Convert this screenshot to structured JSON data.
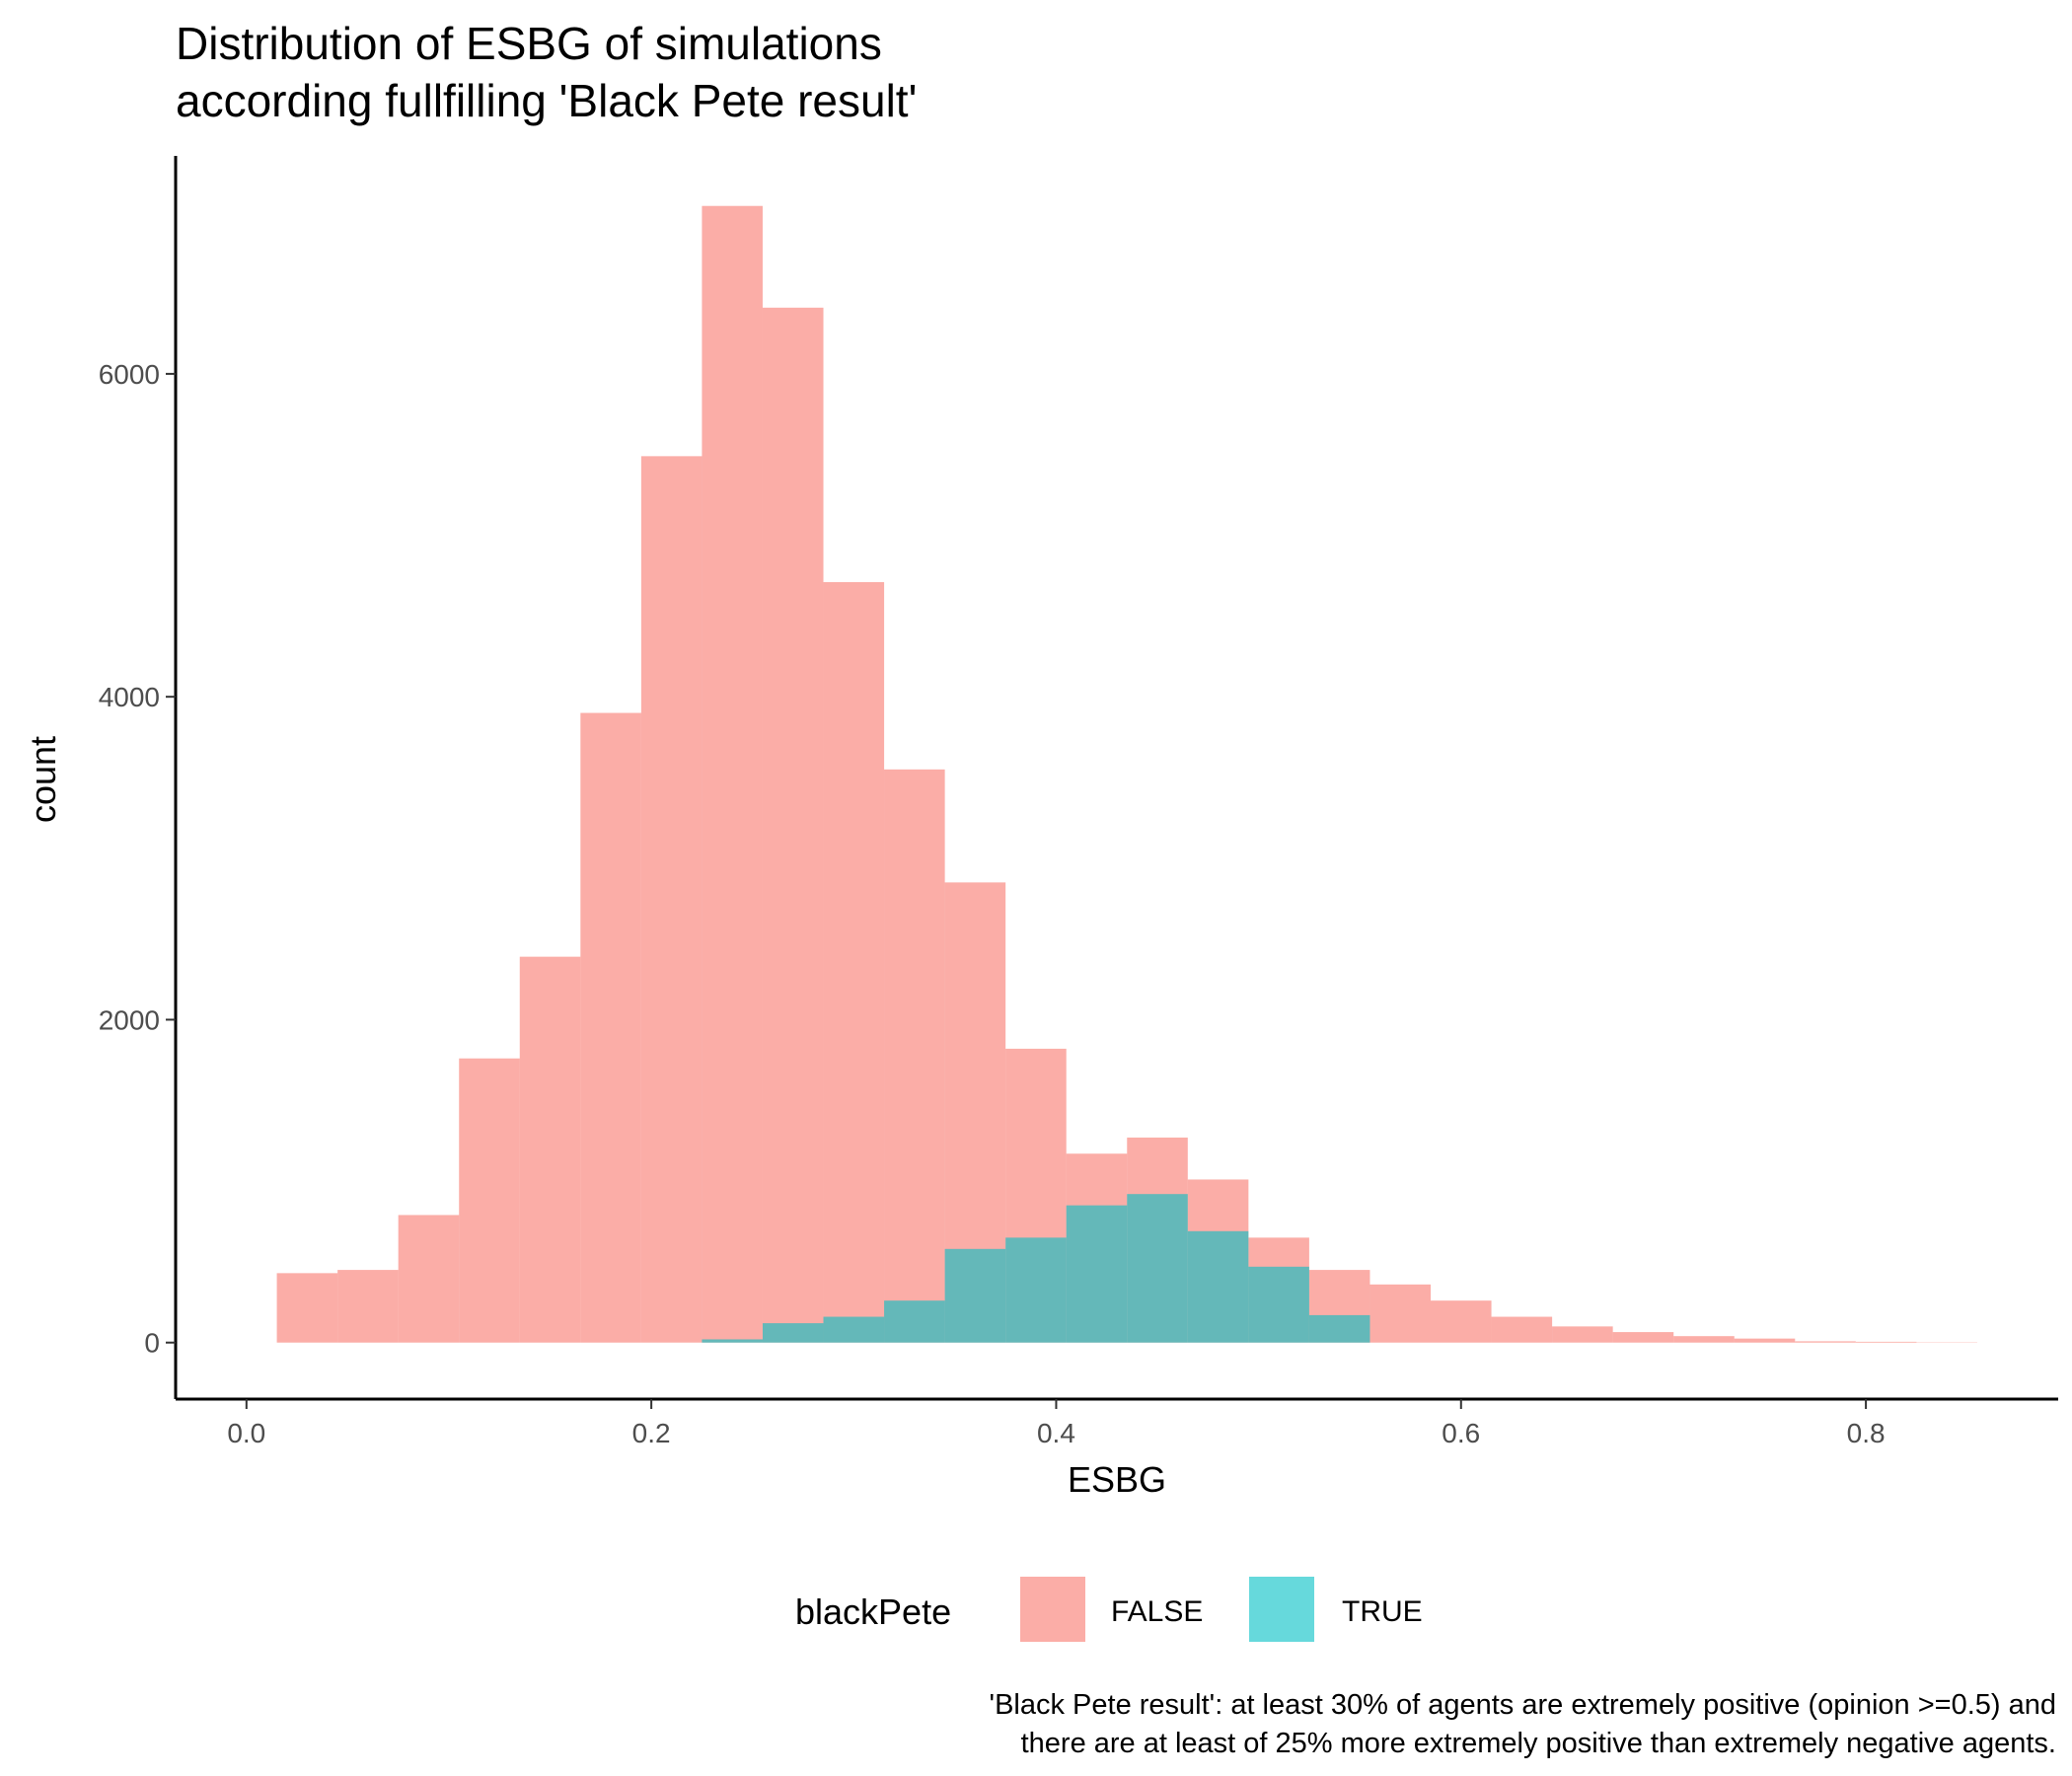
{
  "chart_data": {
    "type": "bar",
    "title_lines": [
      "Distribution of ESBG of simulations",
      "according fullfilling 'Black Pete result'"
    ],
    "xlabel": "ESBG",
    "ylabel": "count",
    "xlim": [
      -0.035,
      0.895
    ],
    "ylim": [
      -350,
      7350
    ],
    "x_ticks": [
      0.0,
      0.2,
      0.4,
      0.6,
      0.8
    ],
    "x_tick_labels": [
      "0.0",
      "0.2",
      "0.4",
      "0.6",
      "0.8"
    ],
    "y_ticks": [
      0,
      2000,
      4000,
      6000
    ],
    "y_tick_labels": [
      "0",
      "2000",
      "4000",
      "6000"
    ],
    "grid": false,
    "bin_width": 0.03,
    "bin_starts": [
      0.015,
      0.045,
      0.075,
      0.105,
      0.135,
      0.165,
      0.195,
      0.225,
      0.255,
      0.285,
      0.315,
      0.345,
      0.375,
      0.405,
      0.435,
      0.465,
      0.495,
      0.525,
      0.555,
      0.585,
      0.615,
      0.645,
      0.675,
      0.705,
      0.735,
      0.765,
      0.795,
      0.825
    ],
    "series": [
      {
        "name": "FALSE",
        "color": "#F8766D",
        "values": [
          430,
          450,
          790,
          1760,
          2390,
          3900,
          5490,
          7040,
          6410,
          4710,
          3550,
          2850,
          1820,
          1170,
          1270,
          1010,
          650,
          450,
          360,
          260,
          160,
          100,
          65,
          40,
          25,
          8,
          5,
          2
        ]
      },
      {
        "name": "TRUE",
        "color": "#00BFC4",
        "values": [
          0,
          0,
          0,
          0,
          0,
          0,
          0,
          20,
          120,
          160,
          260,
          580,
          650,
          850,
          920,
          690,
          470,
          170,
          0,
          0,
          0,
          0,
          0,
          0,
          0,
          0,
          0,
          0
        ]
      }
    ],
    "legend": {
      "title": "blackPete",
      "position": "bottom",
      "entries": [
        "FALSE",
        "TRUE"
      ]
    },
    "caption_lines": [
      "'Black Pete result': at least 30% of agents are extremely positive (opinion >=0.5) and",
      "there are at least of 25% more extremely positive than extremely negative agents."
    ]
  }
}
